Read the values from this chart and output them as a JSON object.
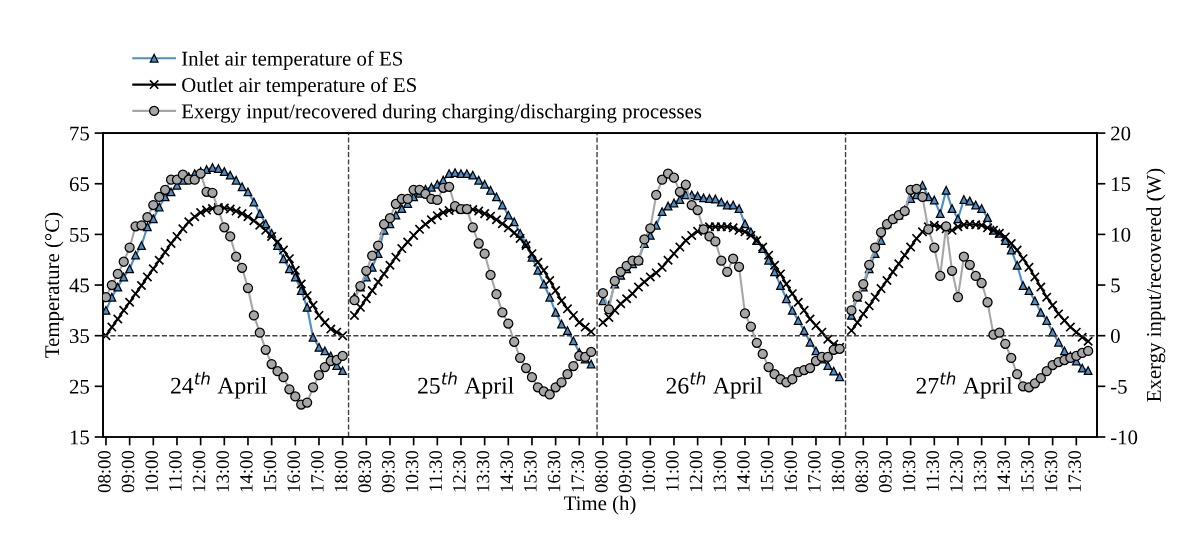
{
  "chart_data": {
    "type": "line",
    "xlabel": "Time (h)",
    "ylabel": "Temperature (°C)",
    "y2label": "Exergy input/recovered (W)",
    "categories": [
      "08:00",
      null,
      null,
      null,
      "09:00",
      null,
      null,
      null,
      "10:00",
      null,
      null,
      null,
      "11:00",
      null,
      null,
      null,
      "12:00",
      null,
      null,
      null,
      "13:00",
      null,
      null,
      null,
      "14:00",
      null,
      null,
      null,
      "15:00",
      null,
      null,
      null,
      "16:00",
      null,
      null,
      null,
      "17:00",
      null,
      null,
      null,
      "18:00",
      null,
      null,
      null,
      "08:30",
      null,
      null,
      null,
      "09:30",
      null,
      null,
      null,
      "10:30",
      null,
      null,
      null,
      "11:30",
      null,
      null,
      null,
      "12:30",
      null,
      null,
      null,
      "13:30",
      null,
      null,
      null,
      "14:30",
      null,
      null,
      null,
      "15:30",
      null,
      null,
      null,
      "16:30",
      null,
      null,
      null,
      "17:30",
      null,
      null,
      null,
      "08:00",
      null,
      null,
      null,
      "09:00",
      null,
      null,
      null,
      "10:00",
      null,
      null,
      null,
      "11:00",
      null,
      null,
      null,
      "12:00",
      null,
      null,
      null,
      "13:00",
      null,
      null,
      null,
      "14:00",
      null,
      null,
      null,
      "15:00",
      null,
      null,
      null,
      "16:00",
      null,
      null,
      null,
      "17:00",
      null,
      null,
      null,
      "18:00",
      null,
      null,
      null,
      "08:30",
      null,
      null,
      null,
      "09:30",
      null,
      null,
      null,
      "10:30",
      null,
      null,
      null,
      "11:30",
      null,
      null,
      null,
      "12:30",
      null,
      null,
      null,
      "13:30",
      null,
      null,
      null,
      "14:30",
      null,
      null,
      null,
      "15:30",
      null,
      null,
      null,
      "16:30",
      null,
      null,
      null,
      "17:30",
      null,
      null,
      null
    ],
    "series": [
      {
        "name": "Inlet air temperature of ES",
        "color": "#4a8fc9",
        "marker": "triangle",
        "values": [
          40.0,
          42.6,
          44.6,
          46.6,
          48.2,
          50.9,
          52.8,
          56.5,
          58.1,
          60.4,
          62.4,
          63.4,
          64.7,
          65.7,
          66.4,
          67.0,
          67.4,
          67.8,
          68.2,
          68.0,
          67.4,
          66.7,
          65.7,
          64.4,
          63.4,
          61.4,
          59.1,
          57.1,
          55.2,
          52.8,
          50.2,
          48.2,
          46.6,
          43.9,
          40.6,
          34.7,
          32.7,
          32.0,
          31.0,
          29.1,
          28.1,
          null,
          42.6,
          44.6,
          46.6,
          48.5,
          51.2,
          55.8,
          57.1,
          58.8,
          60.1,
          61.1,
          62.4,
          63.1,
          63.9,
          64.3,
          64.9,
          65.7,
          67.0,
          67.2,
          67.0,
          67.0,
          66.7,
          65.7,
          64.9,
          63.7,
          62.4,
          60.8,
          58.8,
          57.5,
          55.2,
          53.2,
          50.5,
          47.9,
          45.2,
          42.6,
          39.6,
          37.3,
          36.0,
          34.0,
          31.7,
          30.4,
          29.4,
          null,
          41.9,
          41.0,
          45.2,
          46.9,
          48.2,
          49.2,
          49.9,
          53.2,
          54.8,
          56.8,
          59.5,
          60.6,
          61.2,
          61.9,
          62.8,
          62.8,
          62.6,
          62.2,
          62.1,
          62.0,
          61.4,
          60.8,
          60.8,
          60.1,
          57.1,
          55.5,
          53.8,
          52.2,
          49.9,
          47.6,
          44.9,
          42.3,
          40.0,
          38.0,
          36.0,
          33.7,
          32.0,
          30.4,
          29.1,
          28.0,
          26.9,
          null,
          39.0,
          42.6,
          44.6,
          48.2,
          51.2,
          53.8,
          57.1,
          58.1,
          58.8,
          59.8,
          62.1,
          62.8,
          64.7,
          62.4,
          61.8,
          59.1,
          63.7,
          60.1,
          58.1,
          61.9,
          61.6,
          60.8,
          60.1,
          58.3,
          55.8,
          55.2,
          53.8,
          51.9,
          48.9,
          44.9,
          43.9,
          41.9,
          39.6,
          38.0,
          35.7,
          33.7,
          32.0,
          31.0,
          30.0,
          28.6,
          28.1,
          null
        ]
      },
      {
        "name": "Outlet air temperature of ES",
        "color": "#000000",
        "marker": "cross",
        "values": [
          35.0,
          36.7,
          38.3,
          40.0,
          41.6,
          43.3,
          44.9,
          46.6,
          48.2,
          49.9,
          51.5,
          53.2,
          54.6,
          56.1,
          57.5,
          58.5,
          59.3,
          59.8,
          60.1,
          60.3,
          60.2,
          60.0,
          59.6,
          59.1,
          58.5,
          57.7,
          56.8,
          55.8,
          54.6,
          53.5,
          51.9,
          50.2,
          47.9,
          45.2,
          42.9,
          41.0,
          39.0,
          37.6,
          36.3,
          35.7,
          35.0,
          null,
          39.0,
          40.6,
          42.3,
          43.9,
          45.6,
          47.2,
          48.9,
          50.5,
          52.2,
          53.5,
          54.8,
          56.0,
          57.0,
          57.9,
          58.7,
          59.3,
          59.7,
          59.9,
          60.0,
          60.0,
          59.9,
          59.6,
          59.1,
          58.6,
          57.9,
          57.1,
          56.3,
          55.3,
          54.2,
          52.8,
          51.2,
          49.5,
          47.9,
          45.9,
          43.9,
          41.9,
          40.3,
          39.0,
          37.6,
          36.7,
          35.8,
          null,
          37.6,
          38.6,
          40.0,
          41.3,
          42.3,
          43.3,
          44.6,
          45.6,
          46.6,
          47.4,
          48.5,
          49.9,
          51.2,
          52.5,
          53.8,
          54.8,
          55.6,
          56.1,
          56.5,
          56.5,
          56.5,
          56.5,
          56.3,
          55.8,
          55.5,
          54.8,
          53.8,
          52.5,
          50.9,
          48.9,
          47.2,
          45.2,
          43.3,
          41.6,
          40.0,
          38.3,
          37.0,
          35.7,
          34.3,
          33.3,
          32.7,
          null,
          36.0,
          37.6,
          39.3,
          40.9,
          42.6,
          44.3,
          45.9,
          47.6,
          49.2,
          50.9,
          52.5,
          54.2,
          55.5,
          56.5,
          56.8,
          56.5,
          56.1,
          55.8,
          56.5,
          56.9,
          57.0,
          56.9,
          56.8,
          56.3,
          55.8,
          55.2,
          54.5,
          53.2,
          51.9,
          50.2,
          48.5,
          46.6,
          44.6,
          42.6,
          41.0,
          39.3,
          38.0,
          36.7,
          35.7,
          34.7,
          33.9,
          null
        ]
      },
      {
        "name": "Exergy input/recovered during charging/discharging processes",
        "color": "#a6a6a6",
        "marker": "circle",
        "axis": "y2",
        "values": [
          3.8,
          5.0,
          6.1,
          7.3,
          8.7,
          10.8,
          10.9,
          11.7,
          12.9,
          13.7,
          14.4,
          15.4,
          15.4,
          15.9,
          15.4,
          15.4,
          16.0,
          14.2,
          14.1,
          12.4,
          10.7,
          9.8,
          7.8,
          6.7,
          4.7,
          2.0,
          0.3,
          -1.4,
          -2.8,
          -3.5,
          -4.1,
          -5.3,
          -6.0,
          -6.8,
          -6.6,
          -5.1,
          -3.9,
          -3.1,
          -2.5,
          -2.4,
          -2.0,
          null,
          3.5,
          4.9,
          6.4,
          7.9,
          8.9,
          11.0,
          11.6,
          13.0,
          13.5,
          13.5,
          14.4,
          14.4,
          14.0,
          13.5,
          13.4,
          14.6,
          14.7,
          12.8,
          12.5,
          12.5,
          10.7,
          9.1,
          8.1,
          6.0,
          4.1,
          2.3,
          1.2,
          -0.6,
          -2.2,
          -3.2,
          -4.1,
          -5.1,
          -5.5,
          -5.8,
          -5.1,
          -4.6,
          -3.8,
          -3.0,
          -2.0,
          -2.1,
          -1.6,
          null,
          4.2,
          2.6,
          5.4,
          6.3,
          6.9,
          7.4,
          7.4,
          9.5,
          10.6,
          13.9,
          15.4,
          16.0,
          15.6,
          14.2,
          14.9,
          12.9,
          12.4,
          10.5,
          9.8,
          9.3,
          7.4,
          6.3,
          7.6,
          6.8,
          2.2,
          0.9,
          -0.7,
          -1.8,
          -3.1,
          -3.8,
          -4.3,
          -4.6,
          -4.3,
          -3.6,
          -3.4,
          -3.2,
          -2.5,
          -2.1,
          -2.1,
          -1.4,
          -1.3,
          null,
          2.5,
          3.9,
          5.1,
          7.0,
          8.7,
          10.2,
          11.0,
          11.5,
          11.9,
          12.3,
          14.4,
          14.5,
          13.7,
          10.5,
          8.7,
          5.9,
          10.8,
          6.4,
          3.8,
          7.8,
          7.0,
          5.9,
          5.2,
          3.3,
          0.1,
          0.3,
          -0.8,
          -2.2,
          -3.8,
          -5.0,
          -5.1,
          -4.7,
          -4.2,
          -3.5,
          -2.9,
          -2.6,
          -2.4,
          -2.2,
          -2.0,
          -1.7,
          -1.5,
          null
        ]
      }
    ],
    "ylim": [
      15,
      75
    ],
    "yticks": [
      15,
      25,
      35,
      45,
      55,
      65,
      75
    ],
    "y2lim": [
      -10,
      20
    ],
    "y2ticks": [
      -10,
      -5,
      0,
      5,
      10,
      15,
      20
    ],
    "ref_lines": [
      {
        "axis": "y2",
        "value": 0,
        "color": "#404040",
        "line_style": "dashed"
      }
    ],
    "annotations": [
      "24$^{th}$ April",
      "25$^{th}$ April",
      "26$^{th}$ April",
      "27$^{th}$ April"
    ],
    "legend": "top",
    "grid": false,
    "line_style": "solid"
  }
}
